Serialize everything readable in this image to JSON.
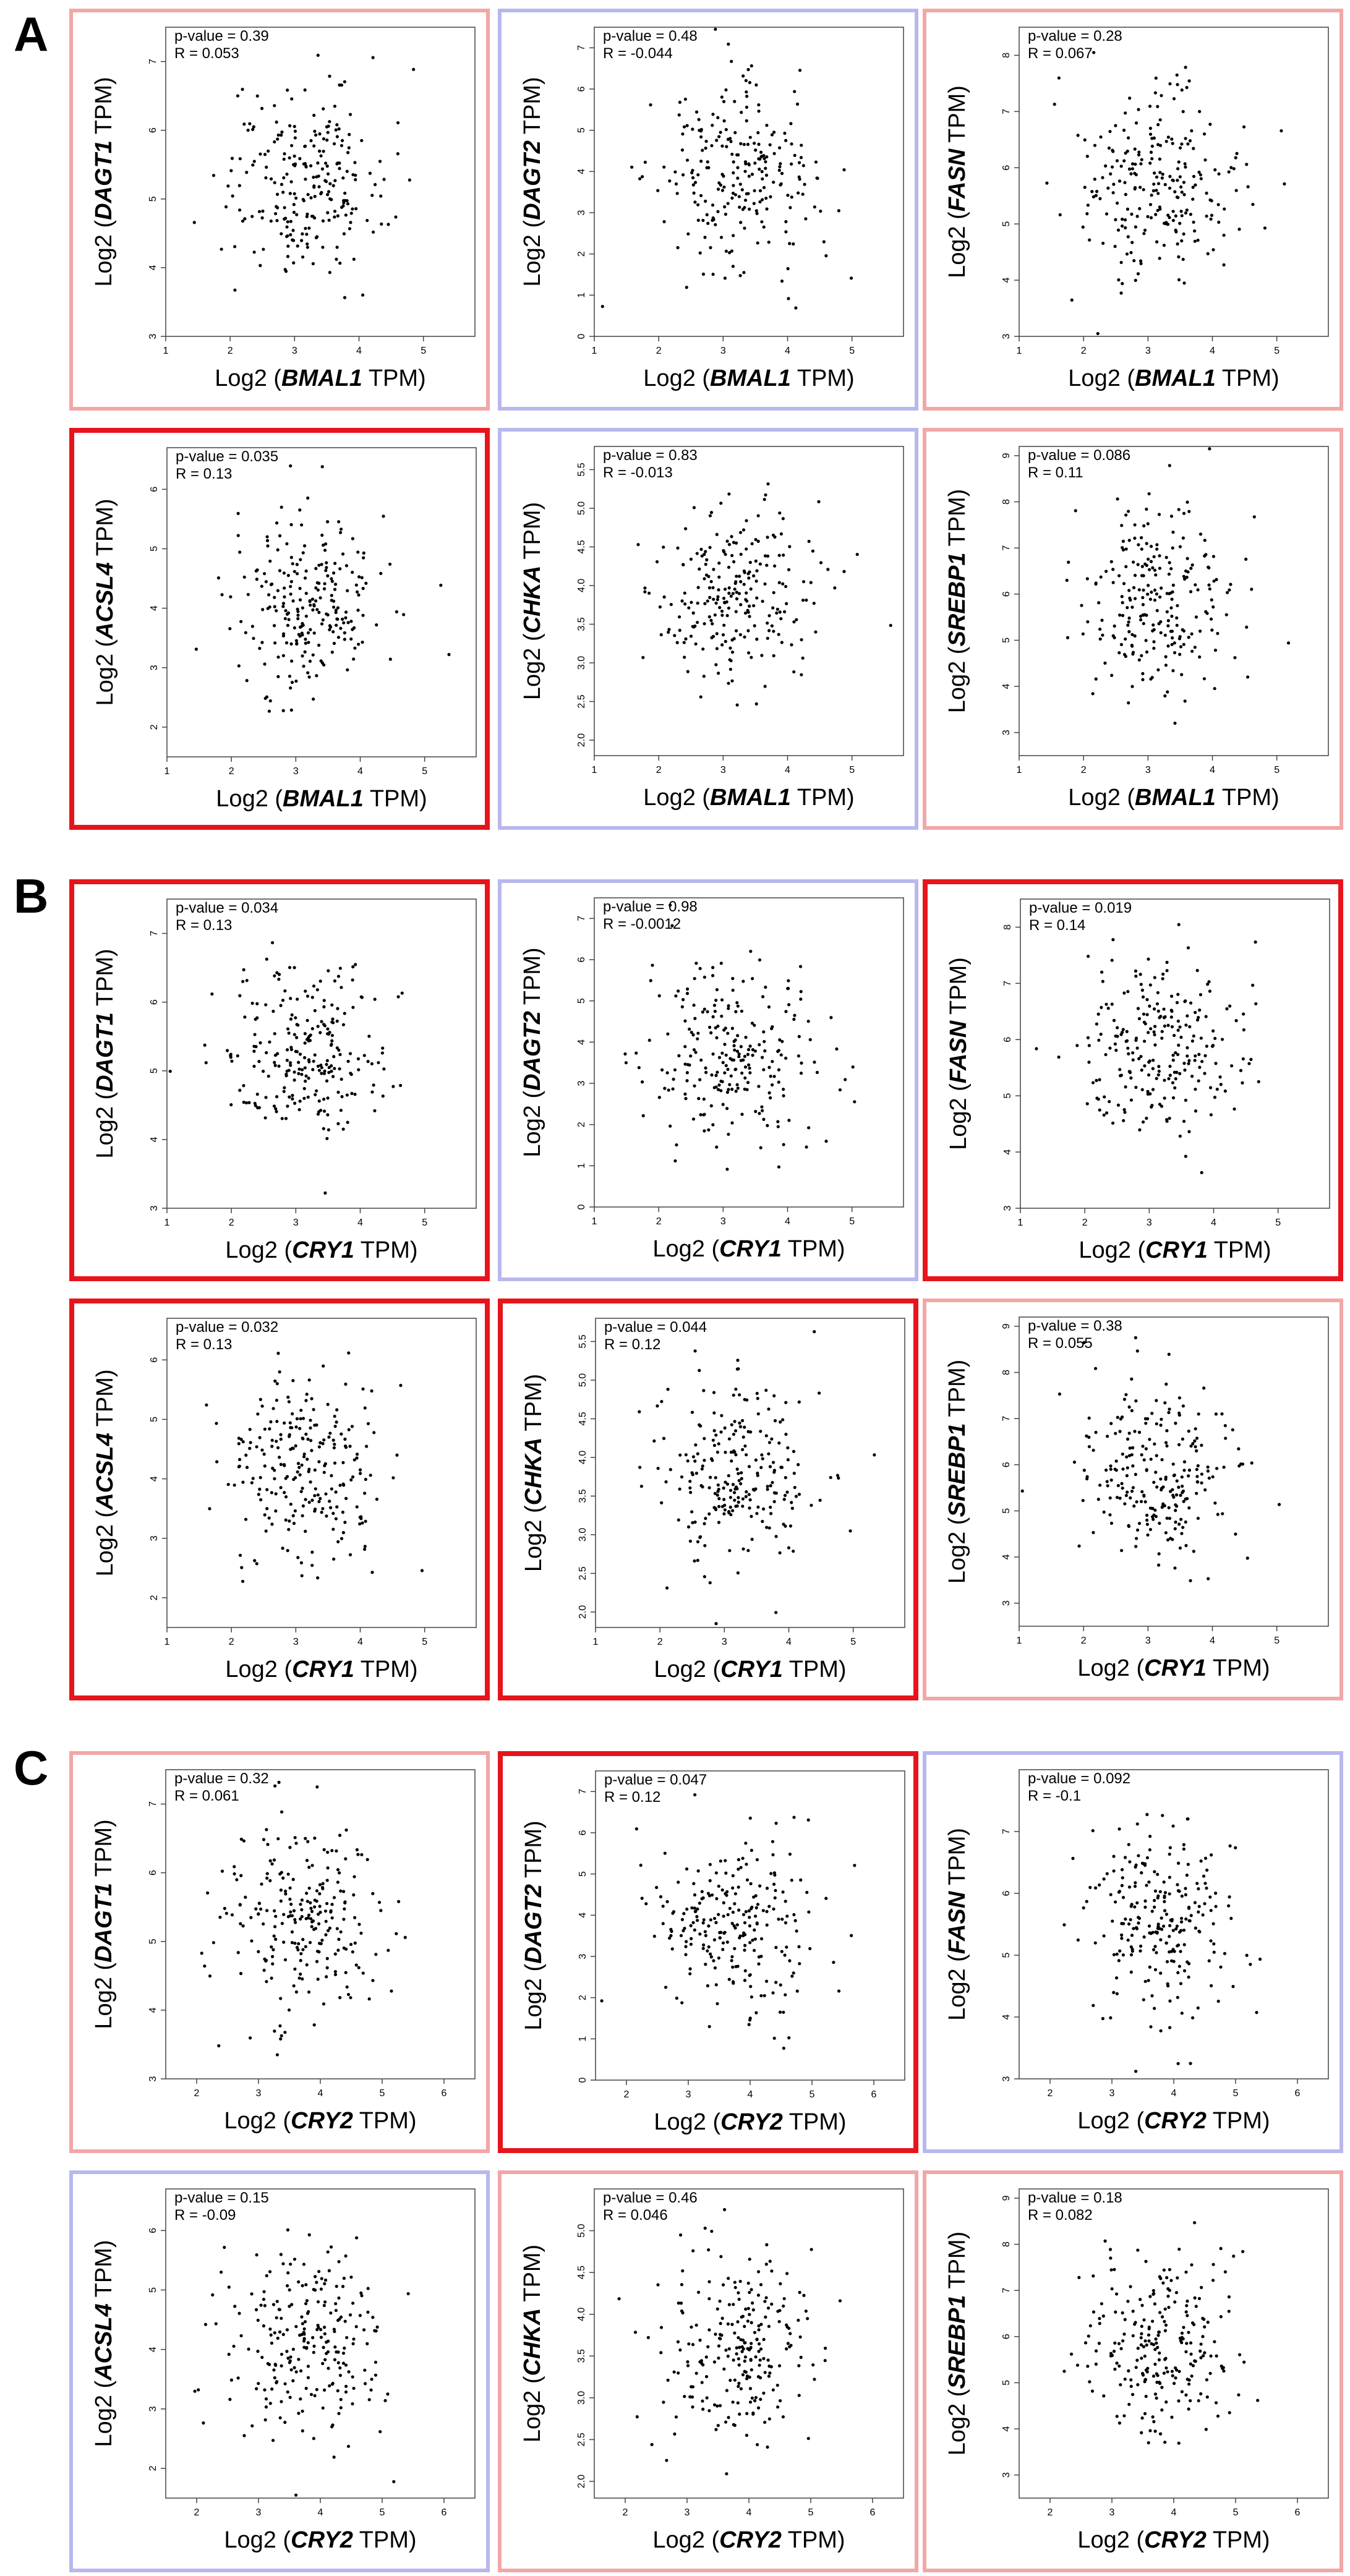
{
  "sections": [
    {
      "letter": "A",
      "xgene": "BMAL1",
      "xticks": [
        "1",
        "2",
        "3",
        "4",
        "5"
      ],
      "panels": [
        {
          "ygene": "DAGT1",
          "pvalue": "p-value = 0.39",
          "r": "R = 0.053",
          "frame": "light-red",
          "yticks": [
            "3",
            "4",
            "5",
            "6",
            "7"
          ]
        },
        {
          "ygene": "DAGT2",
          "pvalue": "p-value = 0.48",
          "r": "R = -0.044",
          "frame": "light-blue",
          "yticks": [
            "0",
            "1",
            "2",
            "3",
            "4",
            "5",
            "6",
            "7"
          ]
        },
        {
          "ygene": "FASN",
          "pvalue": "p-value = 0.28",
          "r": "R = 0.067",
          "frame": "light-red",
          "yticks": [
            "3",
            "4",
            "5",
            "6",
            "7",
            "8"
          ]
        },
        {
          "ygene": "ACSL4",
          "pvalue": "p-value = 0.035",
          "r": "R = 0.13",
          "frame": "red",
          "yticks": [
            "2",
            "3",
            "4",
            "5",
            "6"
          ]
        },
        {
          "ygene": "CHKA",
          "pvalue": "p-value = 0.83",
          "r": "R = -0.013",
          "frame": "light-blue",
          "yticks": [
            "2.0",
            "2.5",
            "3.0",
            "3.5",
            "4.0",
            "4.5",
            "5.0",
            "5.5"
          ]
        },
        {
          "ygene": "SREBP1",
          "pvalue": "p-value = 0.086",
          "r": "R = 0.11",
          "frame": "light-red",
          "yticks": [
            "3",
            "4",
            "5",
            "6",
            "7",
            "8",
            "9"
          ]
        }
      ]
    },
    {
      "letter": "B",
      "xgene": "CRY1",
      "xticks": [
        "1",
        "2",
        "3",
        "4",
        "5"
      ],
      "panels": [
        {
          "ygene": "DAGT1",
          "pvalue": "p-value = 0.034",
          "r": "R = 0.13",
          "frame": "red",
          "yticks": [
            "3",
            "4",
            "5",
            "6",
            "7"
          ]
        },
        {
          "ygene": "DAGT2",
          "pvalue": "p-value = 0.98",
          "r": "R = -0.0012",
          "frame": "light-blue",
          "yticks": [
            "0",
            "1",
            "2",
            "3",
            "4",
            "5",
            "6",
            "7"
          ]
        },
        {
          "ygene": "FASN",
          "pvalue": "p-value = 0.019",
          "r": "R = 0.14",
          "frame": "red",
          "yticks": [
            "3",
            "4",
            "5",
            "6",
            "7",
            "8"
          ]
        },
        {
          "ygene": "ACSL4",
          "pvalue": "p-value = 0.032",
          "r": "R = 0.13",
          "frame": "red",
          "yticks": [
            "2",
            "3",
            "4",
            "5",
            "6"
          ]
        },
        {
          "ygene": "CHKA",
          "pvalue": "p-value = 0.044",
          "r": "R = 0.12",
          "frame": "red",
          "yticks": [
            "2.0",
            "2.5",
            "3.0",
            "3.5",
            "4.0",
            "4.5",
            "5.0",
            "5.5"
          ]
        },
        {
          "ygene": "SREBP1",
          "pvalue": "p-value = 0.38",
          "r": "R = 0.055",
          "frame": "light-red",
          "yticks": [
            "3",
            "4",
            "5",
            "6",
            "7",
            "8",
            "9"
          ]
        }
      ]
    },
    {
      "letter": "C",
      "xgene": "CRY2",
      "xticks": [
        "2",
        "3",
        "4",
        "5",
        "6"
      ],
      "panels": [
        {
          "ygene": "DAGT1",
          "pvalue": "p-value = 0.32",
          "r": "R = 0.061",
          "frame": "light-red",
          "yticks": [
            "3",
            "4",
            "5",
            "6",
            "7"
          ]
        },
        {
          "ygene": "DAGT2",
          "pvalue": "p-value = 0.047",
          "r": "R = 0.12",
          "frame": "red",
          "yticks": [
            "0",
            "1",
            "2",
            "3",
            "4",
            "5",
            "6",
            "7"
          ]
        },
        {
          "ygene": "FASN",
          "pvalue": "p-value = 0.092",
          "r": "R = -0.1",
          "frame": "light-blue",
          "yticks": [
            "3",
            "4",
            "5",
            "6",
            "7"
          ]
        },
        {
          "ygene": "ACSL4",
          "pvalue": "p-value = 0.15",
          "r": "R = -0.09",
          "frame": "light-blue",
          "yticks": [
            "2",
            "3",
            "4",
            "5",
            "6"
          ]
        },
        {
          "ygene": "CHKA",
          "pvalue": "p-value = 0.46",
          "r": "R = 0.046",
          "frame": "light-red",
          "yticks": [
            "2.0",
            "2.5",
            "3.0",
            "3.5",
            "4.0",
            "4.5",
            "5.0"
          ]
        },
        {
          "ygene": "SREBP1",
          "pvalue": "p-value = 0.18",
          "r": "R = 0.082",
          "frame": "light-red",
          "yticks": [
            "3",
            "4",
            "5",
            "6",
            "7",
            "8",
            "9"
          ]
        }
      ]
    }
  ],
  "axis_text": {
    "prefix": "Log2 (",
    "suffix": "TPM)"
  },
  "frame_colors": {
    "red": "#e8141b",
    "light-red": "#f2a6a6",
    "light-blue": "#b8b8ee"
  },
  "chart_data": [
    {
      "type": "scatter",
      "xlabel": "Log2 (BMAL1 TPM)",
      "ylabel": "Log2 (DAGT1 TPM)",
      "xlim": [
        1,
        5.8
      ],
      "ylim": [
        3,
        7.5
      ],
      "annotations": [
        "p-value = 0.39",
        "R = 0.053"
      ]
    },
    {
      "type": "scatter",
      "xlabel": "Log2 (BMAL1 TPM)",
      "ylabel": "Log2 (DAGT2 TPM)",
      "xlim": [
        1,
        5.8
      ],
      "ylim": [
        0,
        7.5
      ],
      "annotations": [
        "p-value = 0.48",
        "R = -0.044"
      ]
    },
    {
      "type": "scatter",
      "xlabel": "Log2 (BMAL1 TPM)",
      "ylabel": "Log2 (FASN TPM)",
      "xlim": [
        1,
        5.8
      ],
      "ylim": [
        3,
        8.5
      ],
      "annotations": [
        "p-value = 0.28",
        "R = 0.067"
      ]
    },
    {
      "type": "scatter",
      "xlabel": "Log2 (BMAL1 TPM)",
      "ylabel": "Log2 (ACSL4 TPM)",
      "xlim": [
        1,
        5.8
      ],
      "ylim": [
        1.5,
        6.7
      ],
      "annotations": [
        "p-value = 0.035",
        "R = 0.13"
      ]
    },
    {
      "type": "scatter",
      "xlabel": "Log2 (BMAL1 TPM)",
      "ylabel": "Log2 (CHKA TPM)",
      "xlim": [
        1,
        5.8
      ],
      "ylim": [
        1.8,
        5.8
      ],
      "annotations": [
        "p-value = 0.83",
        "R = -0.013"
      ]
    },
    {
      "type": "scatter",
      "xlabel": "Log2 (BMAL1 TPM)",
      "ylabel": "Log2 (SREBP1 TPM)",
      "xlim": [
        1,
        5.8
      ],
      "ylim": [
        2.5,
        9.2
      ],
      "annotations": [
        "p-value = 0.086",
        "R = 0.11"
      ]
    },
    {
      "type": "scatter",
      "xlabel": "Log2 (CRY1 TPM)",
      "ylabel": "Log2 (DAGT1 TPM)",
      "xlim": [
        1,
        5.8
      ],
      "ylim": [
        3,
        7.5
      ],
      "annotations": [
        "p-value = 0.034",
        "R = 0.13"
      ]
    },
    {
      "type": "scatter",
      "xlabel": "Log2 (CRY1 TPM)",
      "ylabel": "Log2 (DAGT2 TPM)",
      "xlim": [
        1,
        5.8
      ],
      "ylim": [
        0,
        7.5
      ],
      "annotations": [
        "p-value = 0.98",
        "R = -0.0012"
      ]
    },
    {
      "type": "scatter",
      "xlabel": "Log2 (CRY1 TPM)",
      "ylabel": "Log2 (FASN TPM)",
      "xlim": [
        1,
        5.8
      ],
      "ylim": [
        3,
        8.5
      ],
      "annotations": [
        "p-value = 0.019",
        "R = 0.14"
      ]
    },
    {
      "type": "scatter",
      "xlabel": "Log2 (CRY1 TPM)",
      "ylabel": "Log2 (ACSL4 TPM)",
      "xlim": [
        1,
        5.8
      ],
      "ylim": [
        1.5,
        6.7
      ],
      "annotations": [
        "p-value = 0.032",
        "R = 0.13"
      ]
    },
    {
      "type": "scatter",
      "xlabel": "Log2 (CRY1 TPM)",
      "ylabel": "Log2 (CHKA TPM)",
      "xlim": [
        1,
        5.8
      ],
      "ylim": [
        1.8,
        5.8
      ],
      "annotations": [
        "p-value = 0.044",
        "R = 0.12"
      ]
    },
    {
      "type": "scatter",
      "xlabel": "Log2 (CRY1 TPM)",
      "ylabel": "Log2 (SREBP1 TPM)",
      "xlim": [
        1,
        5.8
      ],
      "ylim": [
        2.5,
        9.2
      ],
      "annotations": [
        "p-value = 0.38",
        "R = 0.055"
      ]
    },
    {
      "type": "scatter",
      "xlabel": "Log2 (CRY2 TPM)",
      "ylabel": "Log2 (DAGT1 TPM)",
      "xlim": [
        1.5,
        6.5
      ],
      "ylim": [
        3,
        7.5
      ],
      "annotations": [
        "p-value = 0.32",
        "R = 0.061"
      ]
    },
    {
      "type": "scatter",
      "xlabel": "Log2 (CRY2 TPM)",
      "ylabel": "Log2 (DAGT2 TPM)",
      "xlim": [
        1.5,
        6.5
      ],
      "ylim": [
        0,
        7.5
      ],
      "annotations": [
        "p-value = 0.047",
        "R = 0.12"
      ]
    },
    {
      "type": "scatter",
      "xlabel": "Log2 (CRY2 TPM)",
      "ylabel": "Log2 (FASN TPM)",
      "xlim": [
        1.5,
        6.5
      ],
      "ylim": [
        3,
        8
      ],
      "annotations": [
        "p-value = 0.092",
        "R = -0.1"
      ]
    },
    {
      "type": "scatter",
      "xlabel": "Log2 (CRY2 TPM)",
      "ylabel": "Log2 (ACSL4 TPM)",
      "xlim": [
        1.5,
        6.5
      ],
      "ylim": [
        1.5,
        6.7
      ],
      "annotations": [
        "p-value = 0.15",
        "R = -0.09"
      ]
    },
    {
      "type": "scatter",
      "xlabel": "Log2 (CRY2 TPM)",
      "ylabel": "Log2 (CHKA TPM)",
      "xlim": [
        1.5,
        6.5
      ],
      "ylim": [
        1.8,
        5.5
      ],
      "annotations": [
        "p-value = 0.46",
        "R = 0.046"
      ]
    },
    {
      "type": "scatter",
      "xlabel": "Log2 (CRY2 TPM)",
      "ylabel": "Log2 (SREBP1 TPM)",
      "xlim": [
        1.5,
        6.5
      ],
      "ylim": [
        2.5,
        9.2
      ],
      "annotations": [
        "p-value = 0.18",
        "R = 0.082"
      ]
    }
  ]
}
